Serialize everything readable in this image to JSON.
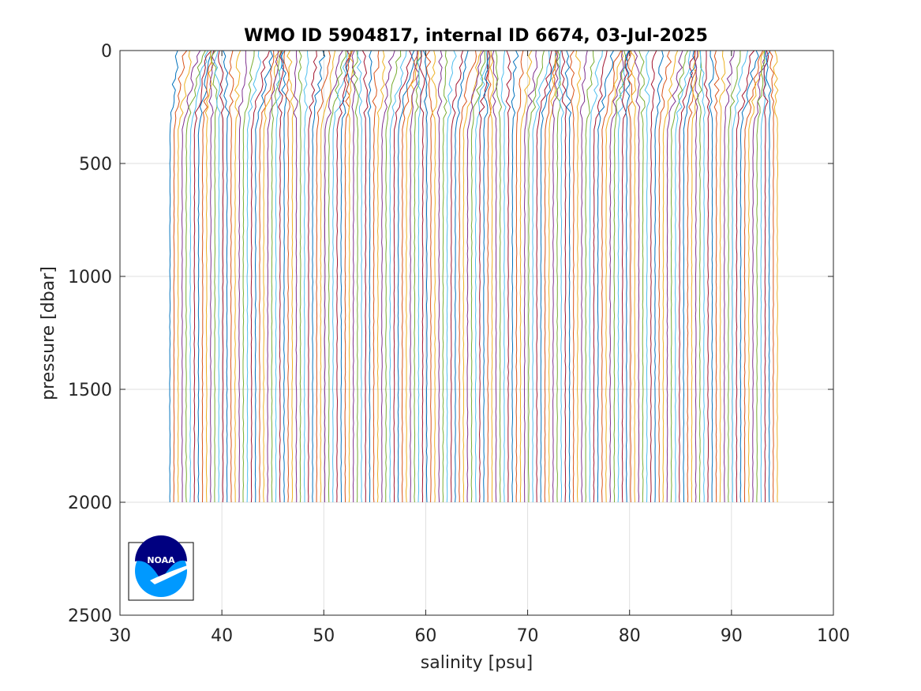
{
  "chart_data": {
    "type": "line",
    "title": "WMO ID 5904817, internal ID 6674, 03-Jul-2025",
    "xlabel": "salinity [psu]",
    "ylabel": "pressure [dbar]",
    "xlim": [
      30,
      100
    ],
    "ylim": [
      0,
      2500
    ],
    "y_reversed": true,
    "grid": true,
    "x_ticks": [
      "30",
      "40",
      "50",
      "60",
      "70",
      "80",
      "90",
      "100"
    ],
    "y_ticks": [
      "0",
      "500",
      "1000",
      "1500",
      "2000",
      "2500"
    ],
    "profiles": {
      "count": 150,
      "offset_step_psu": 0.4,
      "first_offset_psu": 0,
      "base_surface_salinity": 34.95,
      "base_deep_salinity": 34.9,
      "max_pressure_dbar": 2000,
      "colors": [
        "#0072BD",
        "#D95319",
        "#EDB120",
        "#7E2F8E",
        "#77AC30",
        "#4DBEEE",
        "#A2142F"
      ]
    },
    "logo": {
      "text": "NOAA",
      "outer_color": "#0099ff",
      "inner_color": "#000080"
    }
  }
}
